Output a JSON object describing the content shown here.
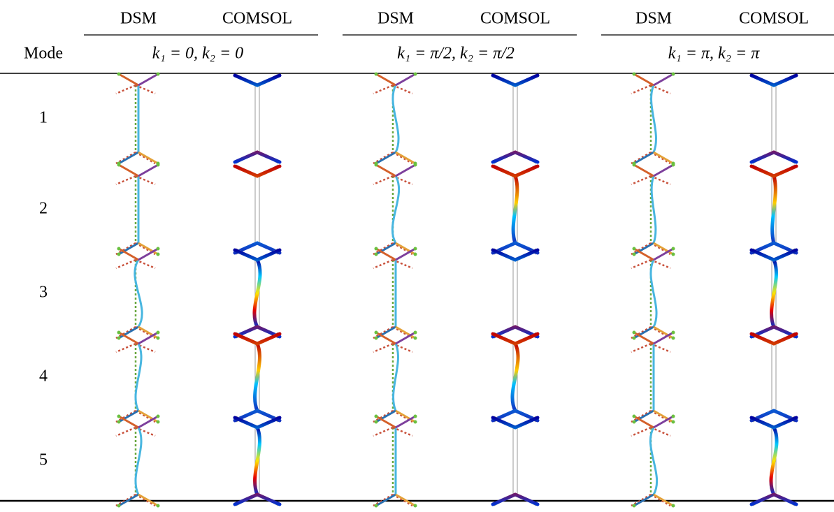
{
  "header": {
    "mode": "Mode",
    "columns": [
      "DSM",
      "COMSOL",
      "DSM",
      "COMSOL",
      "DSM",
      "COMSOL"
    ],
    "groups": [
      "k₁ = 0, k₂ = 0",
      "k₁ = π/2, k₂ = π/2",
      "k₁ = π, k₂ = π"
    ]
  },
  "rows": [
    1,
    2,
    3,
    4,
    5
  ]
}
